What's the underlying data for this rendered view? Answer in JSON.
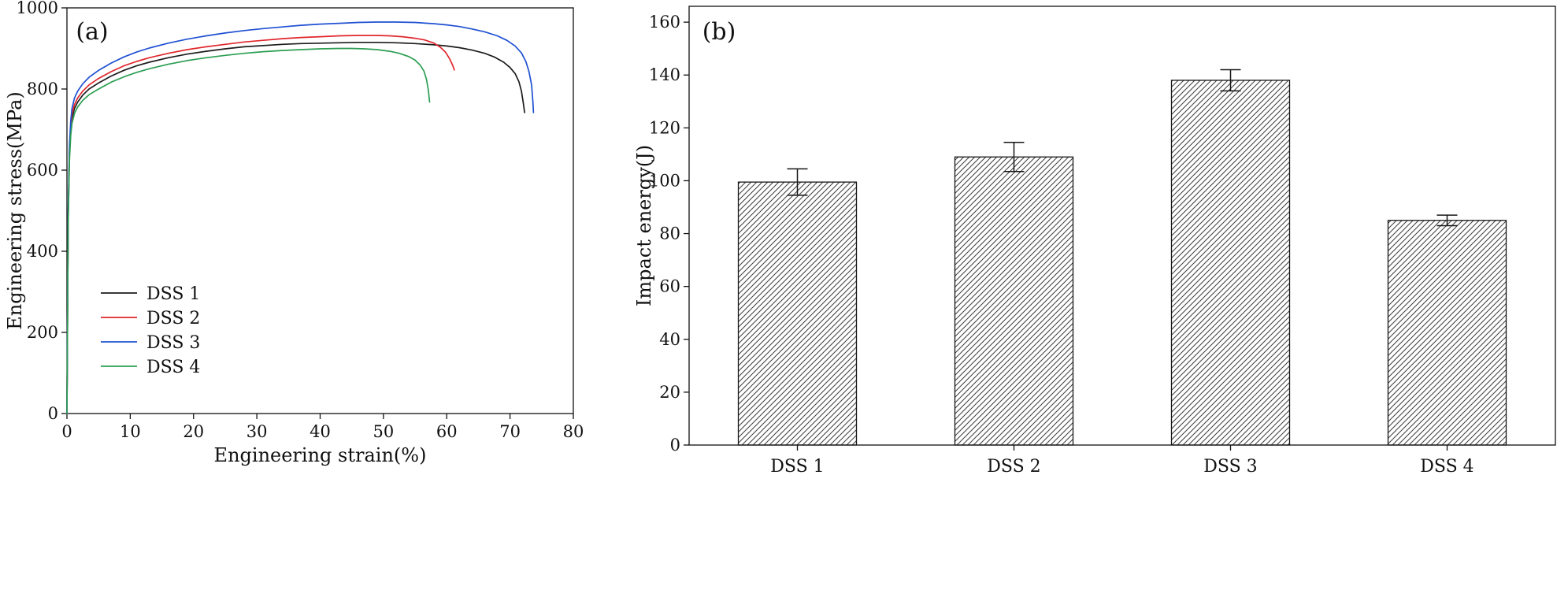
{
  "page": {
    "background": "#ffffff"
  },
  "chart_data": [
    {
      "type": "line",
      "panel_label": "(a)",
      "title": "",
      "xlabel": "Engineering strain(%)",
      "ylabel": "Engineering stress(MPa)",
      "xlim": [
        0,
        80
      ],
      "ylim": [
        0,
        1000
      ],
      "xticks": [
        0,
        10,
        20,
        30,
        40,
        50,
        60,
        70,
        80
      ],
      "yticks": [
        0,
        200,
        400,
        600,
        800,
        1000
      ],
      "grid": false,
      "legend_position": "lower-left-inside",
      "axis_color": "#111111",
      "series": [
        {
          "name": "DSS 1",
          "color": "#1c1c1c",
          "points": [
            [
              0,
              0
            ],
            [
              0.2,
              480
            ],
            [
              0.4,
              640
            ],
            [
              0.6,
              700
            ],
            [
              0.8,
              728
            ],
            [
              1.2,
              752
            ],
            [
              1.7,
              768
            ],
            [
              2.5,
              785
            ],
            [
              3.5,
              800
            ],
            [
              5,
              815
            ],
            [
              7,
              832
            ],
            [
              9,
              846
            ],
            [
              11,
              857
            ],
            [
              13,
              866
            ],
            [
              16,
              877
            ],
            [
              19,
              886
            ],
            [
              22,
              893
            ],
            [
              25,
              899
            ],
            [
              28,
              904
            ],
            [
              31,
              907
            ],
            [
              34,
              910
            ],
            [
              37,
              912
            ],
            [
              40,
              913
            ],
            [
              43,
              914
            ],
            [
              46,
              915
            ],
            [
              49,
              915
            ],
            [
              52,
              914
            ],
            [
              55,
              912
            ],
            [
              58,
              909
            ],
            [
              60,
              906
            ],
            [
              62,
              902
            ],
            [
              64,
              896
            ],
            [
              66,
              888
            ],
            [
              67.5,
              879
            ],
            [
              69,
              866
            ],
            [
              70,
              853
            ],
            [
              70.8,
              838
            ],
            [
              71.4,
              818
            ],
            [
              71.8,
              795
            ],
            [
              72.1,
              765
            ],
            [
              72.3,
              742
            ]
          ]
        },
        {
          "name": "DSS 2",
          "color": "#e0262c",
          "points": [
            [
              0,
              0
            ],
            [
              0.2,
              490
            ],
            [
              0.4,
              650
            ],
            [
              0.6,
              710
            ],
            [
              0.8,
              738
            ],
            [
              1.2,
              762
            ],
            [
              1.7,
              778
            ],
            [
              2.5,
              795
            ],
            [
              3.5,
              810
            ],
            [
              5,
              826
            ],
            [
              7,
              843
            ],
            [
              9,
              857
            ],
            [
              11,
              868
            ],
            [
              13,
              877
            ],
            [
              16,
              888
            ],
            [
              19,
              897
            ],
            [
              22,
              904
            ],
            [
              25,
              910
            ],
            [
              28,
              916
            ],
            [
              31,
              920
            ],
            [
              34,
              924
            ],
            [
              37,
              927
            ],
            [
              40,
              929
            ],
            [
              43,
              931
            ],
            [
              46,
              932
            ],
            [
              49,
              932
            ],
            [
              51,
              931
            ],
            [
              53,
              929
            ],
            [
              55,
              925
            ],
            [
              56.5,
              921
            ],
            [
              58,
              913
            ],
            [
              59,
              903
            ],
            [
              59.8,
              891
            ],
            [
              60.4,
              876
            ],
            [
              60.9,
              860
            ],
            [
              61.2,
              847
            ]
          ]
        },
        {
          "name": "DSS 3",
          "color": "#1f50d2",
          "points": [
            [
              0,
              0
            ],
            [
              0.2,
              500
            ],
            [
              0.4,
              660
            ],
            [
              0.6,
              722
            ],
            [
              0.8,
              752
            ],
            [
              1.2,
              778
            ],
            [
              1.7,
              795
            ],
            [
              2.5,
              813
            ],
            [
              3.5,
              829
            ],
            [
              5,
              846
            ],
            [
              7,
              864
            ],
            [
              9,
              879
            ],
            [
              11,
              891
            ],
            [
              13,
              901
            ],
            [
              16,
              913
            ],
            [
              19,
              923
            ],
            [
              22,
              931
            ],
            [
              25,
              938
            ],
            [
              28,
              944
            ],
            [
              31,
              949
            ],
            [
              34,
              953
            ],
            [
              37,
              957
            ],
            [
              40,
              960
            ],
            [
              43,
              962
            ],
            [
              46,
              964
            ],
            [
              49,
              965
            ],
            [
              52,
              965
            ],
            [
              55,
              964
            ],
            [
              58,
              961
            ],
            [
              60,
              958
            ],
            [
              62,
              954
            ],
            [
              64,
              948
            ],
            [
              66,
              941
            ],
            [
              68,
              931
            ],
            [
              69.5,
              920
            ],
            [
              70.8,
              906
            ],
            [
              71.8,
              889
            ],
            [
              72.5,
              868
            ],
            [
              73,
              843
            ],
            [
              73.4,
              810
            ],
            [
              73.6,
              770
            ],
            [
              73.7,
              742
            ]
          ]
        },
        {
          "name": "DSS 4",
          "color": "#2b9e52",
          "points": [
            [
              0,
              0
            ],
            [
              0.2,
              470
            ],
            [
              0.4,
              625
            ],
            [
              0.6,
              685
            ],
            [
              0.8,
              715
            ],
            [
              1.2,
              740
            ],
            [
              1.7,
              756
            ],
            [
              2.5,
              772
            ],
            [
              3.5,
              786
            ],
            [
              5,
              800
            ],
            [
              7,
              817
            ],
            [
              9,
              830
            ],
            [
              11,
              841
            ],
            [
              13,
              850
            ],
            [
              16,
              861
            ],
            [
              19,
              870
            ],
            [
              22,
              877
            ],
            [
              25,
              883
            ],
            [
              28,
              888
            ],
            [
              31,
              892
            ],
            [
              34,
              895
            ],
            [
              37,
              897
            ],
            [
              40,
              899
            ],
            [
              43,
              900
            ],
            [
              45,
              900
            ],
            [
              47,
              899
            ],
            [
              49,
              897
            ],
            [
              51,
              893
            ],
            [
              52.5,
              888
            ],
            [
              54,
              880
            ],
            [
              55,
              871
            ],
            [
              55.8,
              859
            ],
            [
              56.4,
              844
            ],
            [
              56.8,
              824
            ],
            [
              57.1,
              797
            ],
            [
              57.3,
              768
            ]
          ]
        }
      ]
    },
    {
      "type": "bar",
      "panel_label": "(b)",
      "title": "",
      "xlabel": "",
      "ylabel": "Impact energy(J)",
      "categories": [
        "DSS 1",
        "DSS 2",
        "DSS 3",
        "DSS 4"
      ],
      "values": [
        99.5,
        109,
        138,
        85
      ],
      "errors": [
        5,
        5.5,
        4,
        2
      ],
      "ylim": [
        0,
        166
      ],
      "yticks": [
        0,
        20,
        40,
        60,
        80,
        100,
        120,
        140,
        160
      ],
      "grid": false,
      "bar_fill": "diagonal-hatch",
      "bar_edge_color": "#141414",
      "hatch_color": "#3c3c3c",
      "error_bar_color": "#141414",
      "axis_color": "#111111"
    }
  ]
}
